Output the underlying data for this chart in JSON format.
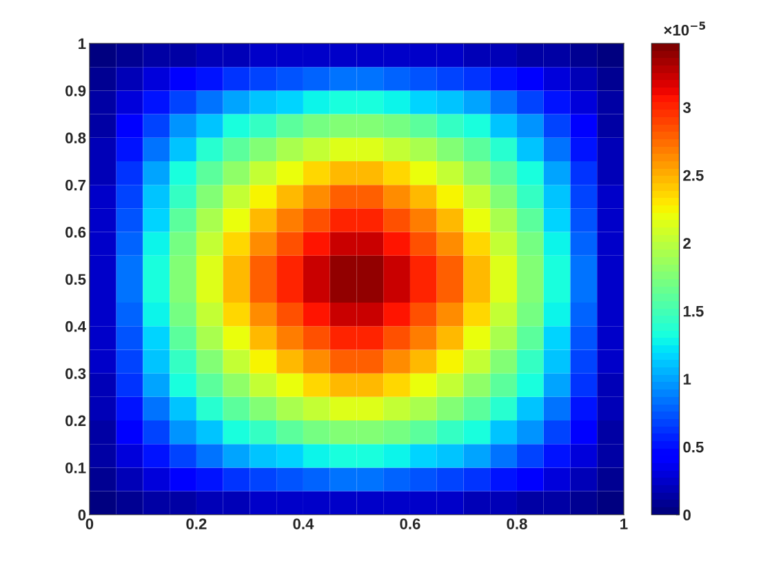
{
  "chart_data": {
    "type": "heatmap",
    "xlim": [
      0,
      1
    ],
    "ylim": [
      0,
      1
    ],
    "xticks": [
      0,
      0.2,
      0.4,
      0.6,
      0.8,
      1
    ],
    "yticks": [
      0,
      0.1,
      0.2,
      0.3,
      0.4,
      0.5,
      0.6,
      0.7,
      0.8,
      0.9,
      1
    ],
    "cells": [
      [
        0.02,
        0.07,
        0.11,
        0.14,
        0.17,
        0.2,
        0.22,
        0.24,
        0.26,
        0.27,
        0.27,
        0.26,
        0.24,
        0.22,
        0.2,
        0.17,
        0.14,
        0.11,
        0.07,
        0.02
      ],
      [
        0.07,
        0.2,
        0.32,
        0.43,
        0.52,
        0.6,
        0.67,
        0.73,
        0.78,
        0.82,
        0.82,
        0.78,
        0.73,
        0.67,
        0.6,
        0.52,
        0.43,
        0.32,
        0.2,
        0.07
      ],
      [
        0.11,
        0.32,
        0.52,
        0.7,
        0.85,
        0.98,
        1.09,
        1.18,
        1.26,
        1.33,
        1.33,
        1.26,
        1.18,
        1.09,
        0.98,
        0.85,
        0.7,
        0.52,
        0.32,
        0.11
      ],
      [
        0.14,
        0.43,
        0.7,
        0.93,
        1.13,
        1.31,
        1.45,
        1.58,
        1.69,
        1.78,
        1.78,
        1.69,
        1.58,
        1.45,
        1.31,
        1.13,
        0.93,
        0.7,
        0.43,
        0.14
      ],
      [
        0.17,
        0.52,
        0.85,
        1.13,
        1.37,
        1.59,
        1.76,
        1.91,
        2.04,
        2.15,
        2.15,
        2.04,
        1.91,
        1.76,
        1.59,
        1.37,
        1.13,
        0.85,
        0.52,
        0.17
      ],
      [
        0.2,
        0.6,
        0.98,
        1.31,
        1.59,
        1.84,
        2.04,
        2.22,
        2.37,
        2.49,
        2.49,
        2.37,
        2.22,
        2.04,
        1.84,
        1.59,
        1.31,
        0.98,
        0.6,
        0.2
      ],
      [
        0.22,
        0.67,
        1.09,
        1.45,
        1.76,
        2.04,
        2.26,
        2.46,
        2.63,
        2.77,
        2.77,
        2.63,
        2.46,
        2.26,
        2.04,
        1.76,
        1.45,
        1.09,
        0.67,
        0.22
      ],
      [
        0.24,
        0.73,
        1.18,
        1.58,
        1.91,
        2.22,
        2.46,
        2.67,
        2.85,
        3.01,
        3.01,
        2.85,
        2.67,
        2.46,
        2.22,
        1.91,
        1.58,
        1.18,
        0.73,
        0.24
      ],
      [
        0.26,
        0.78,
        1.26,
        1.69,
        2.04,
        2.37,
        2.63,
        2.85,
        3.05,
        3.21,
        3.21,
        3.05,
        2.85,
        2.63,
        2.37,
        2.04,
        1.69,
        1.26,
        0.78,
        0.26
      ],
      [
        0.27,
        0.82,
        1.33,
        1.78,
        2.15,
        2.49,
        2.77,
        3.01,
        3.21,
        3.38,
        3.38,
        3.21,
        3.01,
        2.77,
        2.49,
        2.15,
        1.78,
        1.33,
        0.82,
        0.27
      ],
      [
        0.27,
        0.82,
        1.33,
        1.78,
        2.15,
        2.49,
        2.77,
        3.01,
        3.21,
        3.38,
        3.38,
        3.21,
        3.01,
        2.77,
        2.49,
        2.15,
        1.78,
        1.33,
        0.82,
        0.27
      ],
      [
        0.26,
        0.78,
        1.26,
        1.69,
        2.04,
        2.37,
        2.63,
        2.85,
        3.05,
        3.21,
        3.21,
        3.05,
        2.85,
        2.63,
        2.37,
        2.04,
        1.69,
        1.26,
        0.78,
        0.26
      ],
      [
        0.24,
        0.73,
        1.18,
        1.58,
        1.91,
        2.22,
        2.46,
        2.67,
        2.85,
        3.01,
        3.01,
        2.85,
        2.67,
        2.46,
        2.22,
        1.91,
        1.58,
        1.18,
        0.73,
        0.24
      ],
      [
        0.22,
        0.67,
        1.09,
        1.45,
        1.76,
        2.04,
        2.26,
        2.46,
        2.63,
        2.77,
        2.77,
        2.63,
        2.46,
        2.26,
        2.04,
        1.76,
        1.45,
        1.09,
        0.67,
        0.22
      ],
      [
        0.2,
        0.6,
        0.98,
        1.31,
        1.59,
        1.84,
        2.04,
        2.22,
        2.37,
        2.49,
        2.49,
        2.37,
        2.22,
        2.04,
        1.84,
        1.59,
        1.31,
        0.98,
        0.6,
        0.2
      ],
      [
        0.17,
        0.52,
        0.85,
        1.13,
        1.37,
        1.59,
        1.76,
        1.91,
        2.04,
        2.15,
        2.15,
        2.04,
        1.91,
        1.76,
        1.59,
        1.37,
        1.13,
        0.85,
        0.52,
        0.17
      ],
      [
        0.14,
        0.43,
        0.7,
        0.93,
        1.13,
        1.31,
        1.45,
        1.58,
        1.69,
        1.78,
        1.78,
        1.69,
        1.58,
        1.45,
        1.31,
        1.13,
        0.93,
        0.7,
        0.43,
        0.14
      ],
      [
        0.11,
        0.32,
        0.52,
        0.7,
        0.85,
        0.98,
        1.09,
        1.18,
        1.26,
        1.33,
        1.33,
        1.26,
        1.18,
        1.09,
        0.98,
        0.85,
        0.7,
        0.52,
        0.32,
        0.11
      ],
      [
        0.07,
        0.2,
        0.32,
        0.43,
        0.52,
        0.6,
        0.67,
        0.73,
        0.78,
        0.82,
        0.82,
        0.78,
        0.73,
        0.67,
        0.6,
        0.52,
        0.43,
        0.32,
        0.2,
        0.07
      ],
      [
        0.02,
        0.07,
        0.11,
        0.14,
        0.17,
        0.2,
        0.22,
        0.24,
        0.26,
        0.27,
        0.27,
        0.26,
        0.24,
        0.22,
        0.2,
        0.17,
        0.14,
        0.11,
        0.07,
        0.02
      ]
    ],
    "clim": [
      0,
      3.47
    ],
    "cticks": [
      0,
      0.5,
      1,
      1.5,
      2,
      2.5,
      3
    ],
    "annotations": [
      "×10$^{−5}$"
    ]
  }
}
